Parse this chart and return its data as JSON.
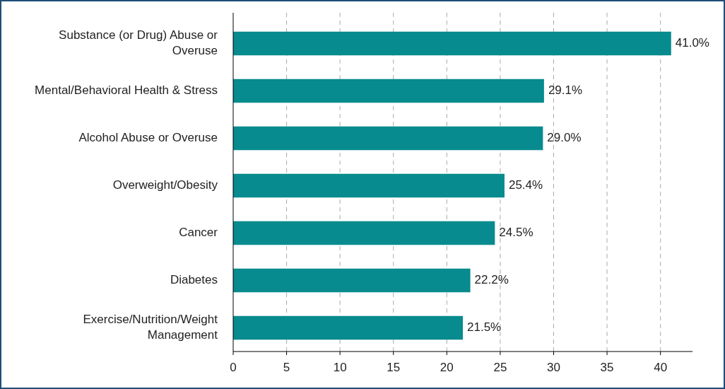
{
  "chart_data": {
    "type": "bar",
    "orientation": "horizontal",
    "categories": [
      "Substance (or Drug) Abuse or Overuse",
      "Mental/Behavioral Health & Stress",
      "Alcohol Abuse or Overuse",
      "Overweight/Obesity",
      "Cancer",
      "Diabetes",
      "Exercise/Nutrition/Weight Management"
    ],
    "values": [
      41.0,
      29.1,
      29.0,
      25.4,
      24.5,
      22.2,
      21.5
    ],
    "value_labels": [
      "41.0%",
      "29.1%",
      "29.0%",
      "25.4%",
      "24.5%",
      "22.2%",
      "21.5%"
    ],
    "color": "#078b8e",
    "xlim": [
      0,
      43
    ],
    "xticks": [
      0,
      5,
      10,
      15,
      20,
      25,
      30,
      35,
      40
    ],
    "grid": "x"
  }
}
